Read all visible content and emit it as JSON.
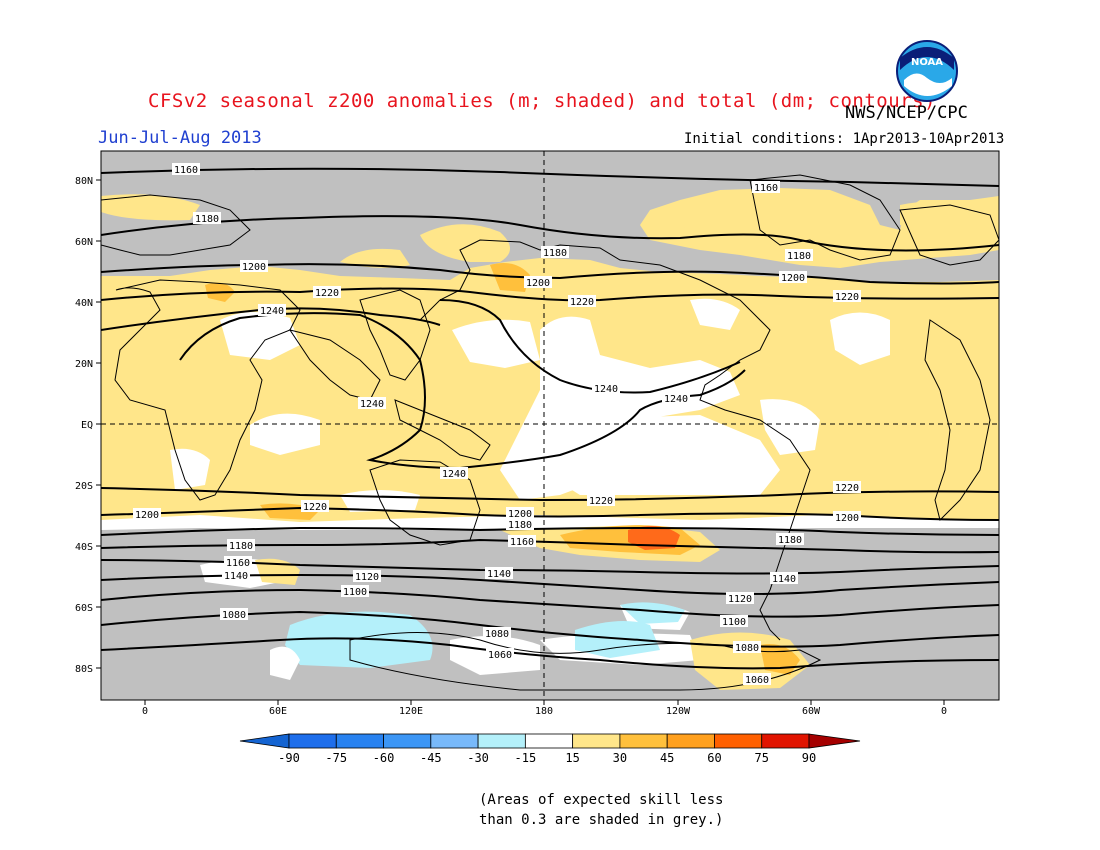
{
  "header": {
    "title": "CFSv2 seasonal z200 anomalies (m; shaded) and total (dm; contours)",
    "organization": "NWS/NCEP/CPC",
    "season": "Jun-Jul-Aug 2013",
    "initial_conditions": "Initial conditions: 1Apr2013-10Apr2013",
    "logo": "NOAA"
  },
  "map": {
    "lat_labels": [
      "80N",
      "60N",
      "40N",
      "20N",
      "EQ",
      "20S",
      "40S",
      "60S",
      "80S"
    ],
    "lon_labels": [
      "0",
      "60E",
      "120E",
      "180",
      "120W",
      "60W",
      "0"
    ],
    "contour_labels": [
      "1160",
      "1160",
      "1180",
      "1180",
      "1180",
      "1200",
      "1200",
      "1200",
      "1220",
      "1220",
      "1220",
      "1240",
      "1240",
      "1240",
      "1240",
      "1240",
      "1220",
      "1220",
      "1220",
      "1200",
      "1200",
      "1200",
      "1180",
      "1180",
      "1180",
      "1160",
      "1160",
      "1140",
      "1140",
      "1140",
      "1120",
      "1120",
      "1100",
      "1100",
      "1080",
      "1080",
      "1080",
      "1060",
      "1060"
    ],
    "colors": {
      "grey_skill_mask": "#c0c0c0",
      "pos_15_30": "#ffe68a",
      "pos_30_45": "#ffc03c",
      "pos_45_60": "#ff6a1a",
      "neg_15_30": "#b4f0fa",
      "neutral": "#ffffff"
    }
  },
  "colorbar": {
    "ticks": [
      "-90",
      "-75",
      "-60",
      "-45",
      "-30",
      "-15",
      "15",
      "30",
      "45",
      "60",
      "75",
      "90"
    ],
    "colors": [
      "#1464d2",
      "#1e6eeb",
      "#2882f0",
      "#3c96f5",
      "#78b9fa",
      "#b4f0fa",
      "#ffffff",
      "#ffe68a",
      "#ffc03c",
      "#ffa01e",
      "#ff6000",
      "#e11400",
      "#a50000"
    ]
  },
  "footnote": {
    "line1": "(Areas of expected skill less",
    "line2": "than 0.3 are shaded in grey.)"
  }
}
